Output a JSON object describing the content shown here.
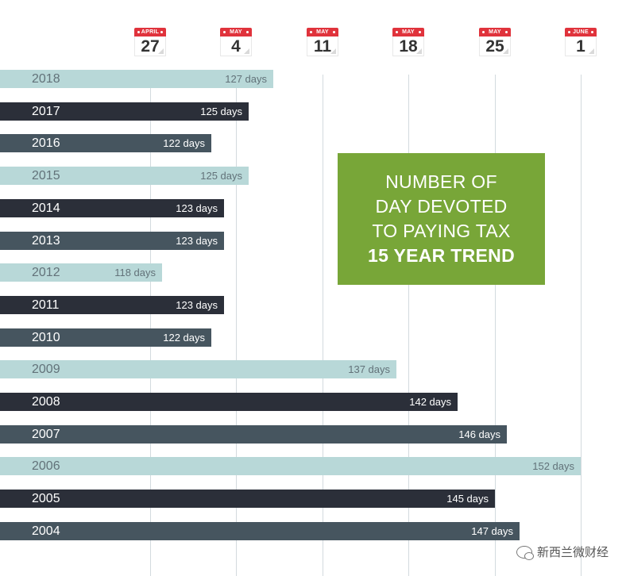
{
  "chart_data": {
    "type": "bar",
    "orientation": "horizontal",
    "title": "NUMBER OF DAY DEVOTED TO PAYING TAX",
    "subtitle": "15 YEAR TREND",
    "categories": [
      "2018",
      "2017",
      "2016",
      "2015",
      "2014",
      "2013",
      "2012",
      "2011",
      "2010",
      "2009",
      "2008",
      "2007",
      "2006",
      "2005",
      "2004"
    ],
    "values": [
      127,
      125,
      122,
      125,
      123,
      123,
      118,
      123,
      122,
      137,
      142,
      146,
      152,
      145,
      147
    ],
    "value_labels": [
      "127 days",
      "125 days",
      "122 days",
      "125 days",
      "123 days",
      "123 days",
      "118 days",
      "123 days",
      "122 days",
      "137 days",
      "142 days",
      "146 days",
      "152 days",
      "145 days",
      "147 days"
    ],
    "bar_colors": [
      "#b8d8d8",
      "#2b2f39",
      "#46555f",
      "#b8d8d8",
      "#2b2f39",
      "#46555f",
      "#b8d8d8",
      "#2b2f39",
      "#46555f",
      "#b8d8d8",
      "#2b2f39",
      "#46555f",
      "#b8d8d8",
      "#2b2f39",
      "#46555f"
    ],
    "bar_styles": [
      "light",
      "dark",
      "slate",
      "light",
      "dark",
      "slate",
      "light",
      "dark",
      "slate",
      "light",
      "dark",
      "slate",
      "light",
      "dark",
      "slate"
    ],
    "x_ticks": [
      {
        "value": 117,
        "month": "APRIL",
        "day": "27"
      },
      {
        "value": 124,
        "month": "MAY",
        "day": "4"
      },
      {
        "value": 131,
        "month": "MAY",
        "day": "11"
      },
      {
        "value": 138,
        "month": "MAY",
        "day": "18"
      },
      {
        "value": 145,
        "month": "MAY",
        "day": "25"
      },
      {
        "value": 152,
        "month": "JUNE",
        "day": "1"
      }
    ],
    "grid": true
  },
  "title_box": {
    "lines": [
      "NUMBER OF",
      "DAY DEVOTED",
      "TO PAYING TAX"
    ],
    "highlight": "15 YEAR TREND"
  },
  "watermark": "新西兰微财经",
  "colors": {
    "accent_green": "#78a638",
    "calendar_red": "#e0333c",
    "gridline": "#d3dade"
  }
}
